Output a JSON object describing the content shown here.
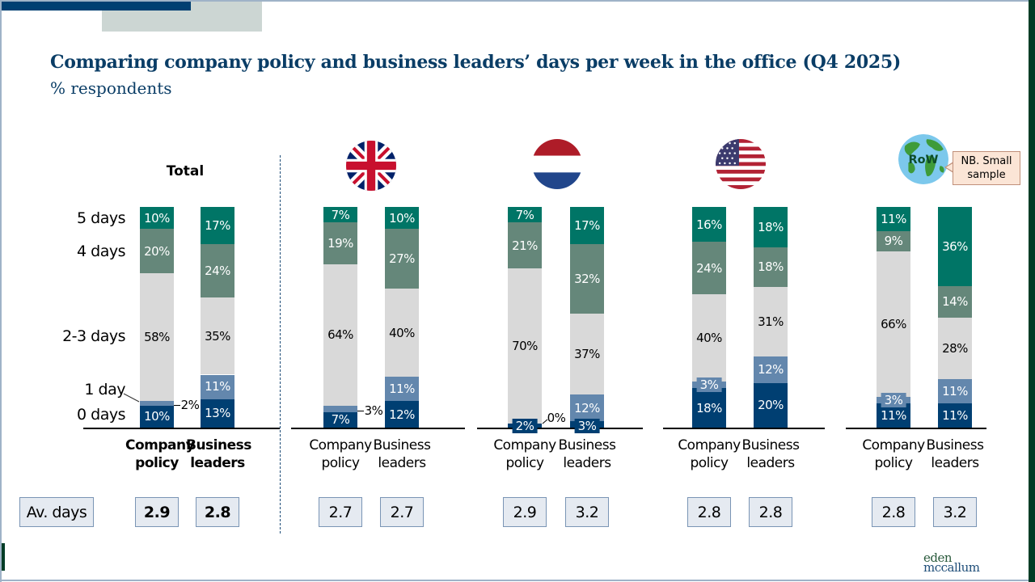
{
  "title": "Comparing company policy and business leaders’ days per week in the office (Q4 2025)",
  "subtitle": "% respondents",
  "note": "NB. Small sample",
  "logo": {
    "line1": "eden",
    "line2": "mccallum"
  },
  "av_days_label": "Av. days",
  "chart_data": {
    "type": "bar",
    "stacked": true,
    "title": "Comparing company policy and business leaders’ days per week in the office (Q4 2025)",
    "ylabel": "% respondents",
    "y_tick_labels": [
      "5 days",
      "4 days",
      "2-3 days",
      "1 day",
      "0 days"
    ],
    "segment_order_bottom_to_top": [
      "0 days",
      "1 day",
      "2-3 days",
      "4 days",
      "5 days"
    ],
    "colors": {
      "0 days": "#003f72",
      "1 day": "#6387ad",
      "2-3 days": "#d9d9d9",
      "4 days": "#65877a",
      "5 days": "#007566"
    },
    "categories": [
      "Company policy",
      "Business leaders"
    ],
    "groups": [
      {
        "name": "Total",
        "icon": "total-label",
        "bars": [
          {
            "label": "Company policy",
            "values": {
              "0 days": 10,
              "1 day": 2,
              "2-3 days": 58,
              "4 days": 20,
              "5 days": 10
            },
            "av_days": "2.9"
          },
          {
            "label": "Business leaders",
            "values": {
              "0 days": 13,
              "1 day": 11,
              "2-3 days": 35,
              "4 days": 24,
              "5 days": 17
            },
            "av_days": "2.8"
          }
        ]
      },
      {
        "name": "UK",
        "icon": "uk-flag-icon",
        "bars": [
          {
            "label": "Company policy",
            "values": {
              "0 days": 7,
              "1 day": 3,
              "2-3 days": 64,
              "4 days": 19,
              "5 days": 7
            },
            "av_days": "2.7"
          },
          {
            "label": "Business leaders",
            "values": {
              "0 days": 12,
              "1 day": 11,
              "2-3 days": 40,
              "4 days": 27,
              "5 days": 10
            },
            "av_days": "2.7"
          }
        ]
      },
      {
        "name": "Netherlands",
        "icon": "netherlands-flag-icon",
        "bars": [
          {
            "label": "Company policy",
            "values": {
              "0 days": 2,
              "1 day": 0,
              "2-3 days": 70,
              "4 days": 21,
              "5 days": 7
            },
            "av_days": "2.9"
          },
          {
            "label": "Business leaders",
            "values": {
              "0 days": 3,
              "1 day": 12,
              "2-3 days": 37,
              "4 days": 32,
              "5 days": 17
            },
            "av_days": "3.2"
          }
        ]
      },
      {
        "name": "USA",
        "icon": "usa-flag-icon",
        "bars": [
          {
            "label": "Company policy",
            "values": {
              "0 days": 18,
              "1 day": 3,
              "2-3 days": 40,
              "4 days": 24,
              "5 days": 16
            },
            "av_days": "2.8"
          },
          {
            "label": "Business leaders",
            "values": {
              "0 days": 20,
              "1 day": 12,
              "2-3 days": 31,
              "4 days": 18,
              "5 days": 18
            },
            "av_days": "2.8"
          }
        ]
      },
      {
        "name": "RoW",
        "icon": "globe-icon",
        "bars": [
          {
            "label": "Company policy",
            "values": {
              "0 days": 11,
              "1 day": 3,
              "2-3 days": 66,
              "4 days": 9,
              "5 days": 11
            },
            "av_days": "2.8"
          },
          {
            "label": "Business leaders",
            "values": {
              "0 days": 11,
              "1 day": 11,
              "2-3 days": 28,
              "4 days": 14,
              "5 days": 36
            },
            "av_days": "3.2"
          }
        ]
      }
    ],
    "ylim": [
      0,
      100
    ]
  }
}
